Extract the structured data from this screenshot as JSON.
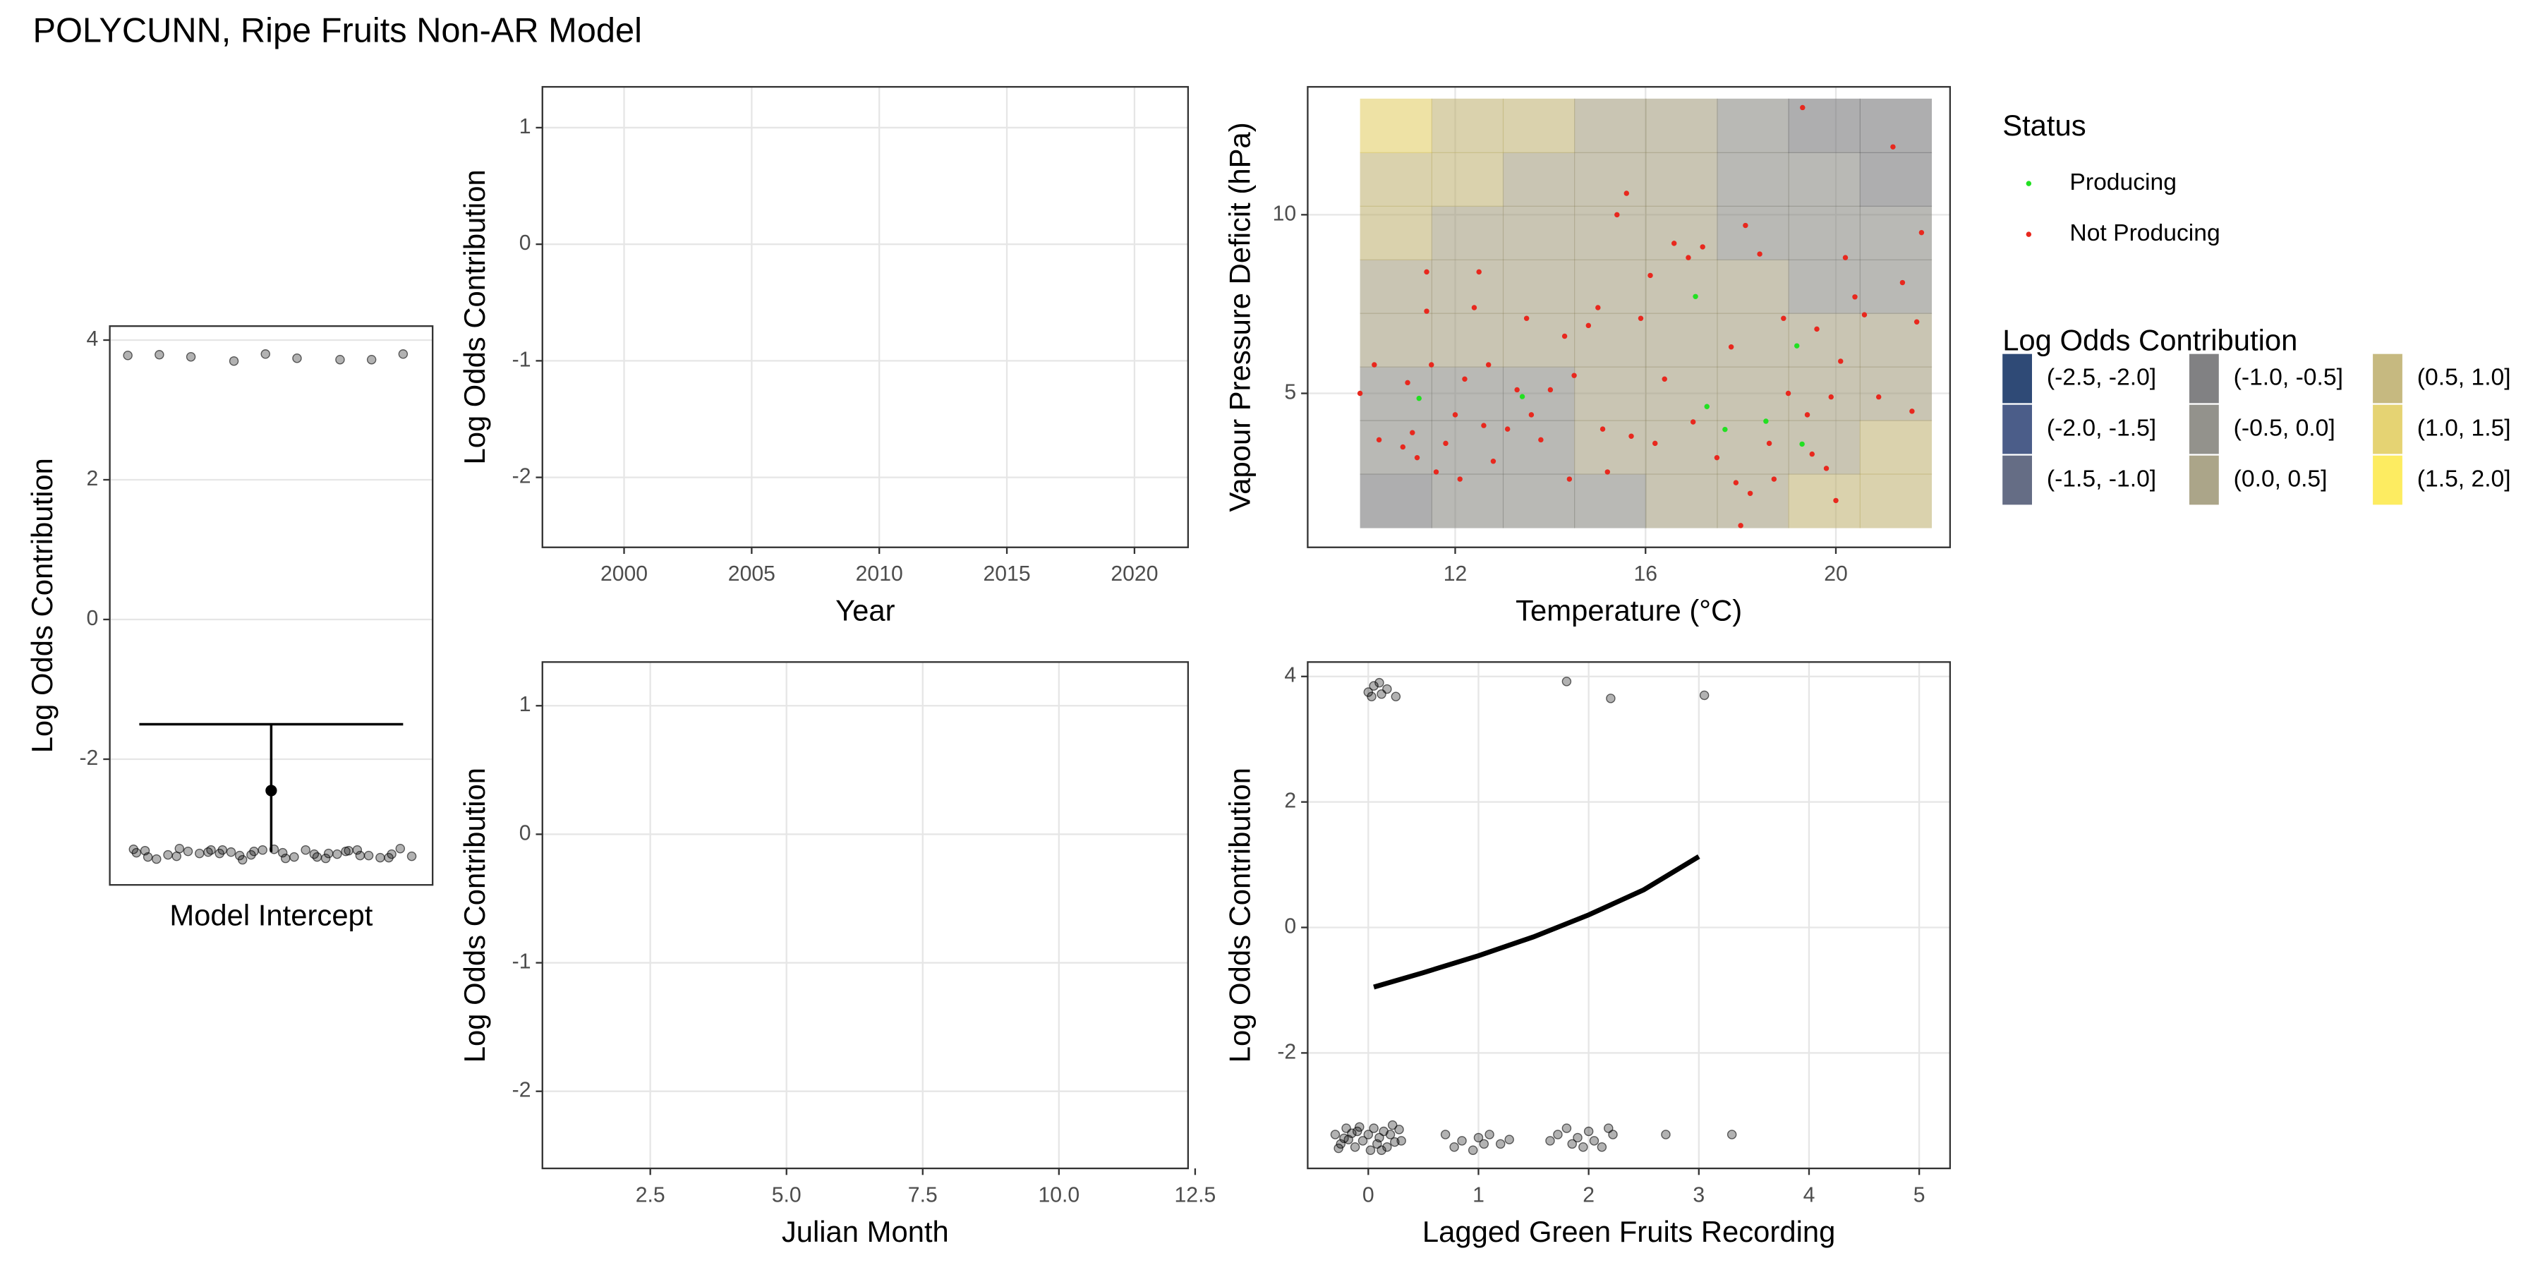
{
  "title": "POLYCUNN, Ripe Fruits Non-AR Model",
  "chart_data": [
    {
      "type": "errorbar",
      "x_label": "Model Intercept",
      "y_label": "Log Odds Contribution",
      "ylim": [
        -3.8,
        4.2
      ],
      "yticks": [
        -2,
        0,
        2,
        4
      ],
      "estimate": -2.45,
      "upper": -1.5,
      "lower": -3.33,
      "points": [
        3.78,
        3.7,
        3.72,
        3.79,
        3.8,
        3.72,
        3.76,
        3.74,
        3.8,
        -3.3,
        -3.35,
        -3.4,
        -3.32,
        -3.38,
        -3.28,
        -3.42,
        -3.36,
        -3.3,
        -3.4,
        -3.34,
        -3.44,
        -3.31,
        -3.37,
        -3.29,
        -3.41,
        -3.35,
        -3.3,
        -3.39,
        -3.33,
        -3.36,
        -3.43,
        -3.3,
        -3.38,
        -3.32,
        -3.4,
        -3.28,
        -3.35,
        -3.42,
        -3.31,
        -3.37,
        -3.3,
        -3.39,
        -3.34,
        -3.41,
        -3.33,
        -3.36,
        -3.29,
        -3.38,
        -3.32
      ]
    },
    {
      "type": "line",
      "x_label": "Year",
      "y_label": "Log Odds Contribution",
      "xlim": [
        1996.8,
        2022.1
      ],
      "xticks": [
        2000,
        2005,
        2010,
        2015,
        2020
      ],
      "ylim": [
        -2.6,
        1.35
      ],
      "yticks": [
        -2,
        -1,
        0,
        1
      ],
      "series": []
    },
    {
      "type": "line",
      "x_label": "Julian Month",
      "y_label": "Log Odds Contribution",
      "xlim": [
        0.52,
        12.37
      ],
      "xticks": [
        2.5,
        {
          "value": 5,
          "label": "5.0"
        },
        7.5,
        {
          "value": 10,
          "label": "10.0"
        },
        12.5
      ],
      "ylim": [
        -2.6,
        1.34
      ],
      "yticks": [
        -2,
        -1,
        0,
        1
      ],
      "series": []
    },
    {
      "type": "contour",
      "x_label": "Temperature (°C)",
      "y_label": "Vapour Pressure Deficit (hPa)",
      "xlim": [
        8.9,
        22.4
      ],
      "xticks": [
        12,
        16,
        20
      ],
      "ylim": [
        0.69,
        13.58
      ],
      "yticks": [
        5,
        10
      ],
      "legend_title": "Status",
      "series": [
        {
          "name": "Producing",
          "color": "#22e022",
          "x": [
            11.24,
            13.41,
            17.05,
            17.29,
            17.67,
            18.53,
            19.18,
            19.29
          ],
          "y": [
            4.86,
            4.91,
            7.71,
            4.63,
            3.99,
            4.22,
            6.33,
            3.58
          ]
        },
        {
          "name": "Not Producing",
          "color": "#e8281e",
          "x": [
            10.0,
            10.3,
            10.4,
            10.9,
            11.0,
            11.1,
            11.2,
            11.4,
            11.4,
            11.5,
            11.6,
            11.8,
            12.0,
            12.1,
            12.2,
            12.4,
            12.5,
            12.6,
            12.7,
            12.8,
            13.1,
            13.3,
            13.5,
            13.6,
            13.8,
            14.0,
            14.3,
            14.4,
            14.5,
            14.8,
            15.0,
            15.1,
            15.2,
            15.4,
            15.6,
            15.7,
            15.9,
            16.1,
            16.2,
            16.4,
            16.6,
            16.9,
            17.0,
            17.2,
            17.5,
            17.8,
            17.9,
            18.0,
            18.1,
            18.2,
            18.4,
            18.6,
            18.7,
            18.9,
            19.0,
            19.3,
            19.4,
            19.5,
            19.6,
            19.8,
            19.9,
            20.0,
            20.1,
            20.2,
            20.4,
            20.6,
            20.9,
            21.2,
            21.4,
            21.6,
            21.8,
            21.7
          ],
          "y": [
            5.0,
            5.8,
            3.7,
            3.5,
            5.3,
            3.9,
            3.2,
            7.3,
            8.4,
            5.8,
            2.8,
            3.6,
            4.4,
            2.6,
            5.4,
            7.4,
            8.4,
            4.1,
            5.8,
            3.1,
            4.0,
            5.1,
            7.1,
            4.4,
            3.7,
            5.1,
            6.6,
            2.6,
            5.5,
            6.9,
            7.4,
            4.0,
            2.8,
            10.0,
            10.6,
            3.8,
            7.1,
            8.3,
            3.6,
            5.4,
            9.2,
            8.8,
            4.2,
            9.1,
            3.2,
            6.3,
            2.5,
            1.3,
            9.7,
            2.2,
            8.9,
            3.6,
            2.6,
            7.1,
            5.0,
            13.0,
            4.4,
            3.3,
            6.8,
            2.9,
            4.9,
            2.0,
            5.9,
            8.8,
            7.7,
            7.2,
            4.9,
            11.9,
            8.1,
            4.5,
            9.5,
            7.0
          ]
        }
      ],
      "contour": {
        "title": "Log Odds Contribution",
        "x": [
          10.75,
          12.25,
          13.75,
          15.25,
          16.75,
          18.25,
          19.75,
          21.25
        ],
        "y": [
          2,
          3.5,
          5,
          6.5,
          8,
          9.5,
          11,
          12.5
        ],
        "z": [
          [
            -0.68,
            -0.47,
            -0.25,
            -0.04,
            0.18,
            0.4,
            0.61,
            0.83
          ],
          [
            -0.44,
            -0.29,
            -0.14,
            0.01,
            0.15,
            0.3,
            0.45,
            0.6
          ],
          [
            -0.19,
            -0.11,
            -0.03,
            0.05,
            0.13,
            0.21,
            0.29,
            0.37
          ],
          [
            0.05,
            0.06,
            0.08,
            0.09,
            0.1,
            0.12,
            0.13,
            0.15
          ],
          [
            0.3,
            0.24,
            0.19,
            0.13,
            0.08,
            0.03,
            -0.03,
            -0.08
          ],
          [
            0.54,
            0.42,
            0.3,
            0.18,
            0.06,
            -0.07,
            -0.19,
            -0.31
          ],
          [
            0.79,
            0.6,
            0.41,
            0.22,
            0.03,
            -0.16,
            -0.35,
            -0.54
          ],
          [
            1.03,
            0.78,
            0.52,
            0.26,
            0.01,
            -0.25,
            -0.51,
            -0.76
          ]
        ],
        "breaks": [
          -2.5,
          -2.0,
          -1.5,
          -1.0,
          -0.5,
          0.0,
          0.5,
          1.0,
          1.5,
          2.0
        ],
        "levels": [
          {
            "label": "(-2.5, -2.0]",
            "color": "#0a2a5e"
          },
          {
            "label": "(-2.0, -1.5]",
            "color": "#2b4174"
          },
          {
            "label": "(-1.5, -1.0]",
            "color": "#4a5470"
          },
          {
            "label": "(-1.0, -0.5]",
            "color": "#6b6b6d"
          },
          {
            "label": "(-0.5, 0.0]",
            "color": "#807f78"
          },
          {
            "label": "(0.0, 0.5]",
            "color": "#9c9574"
          },
          {
            "label": "(0.5, 1.0]",
            "color": "#bcad6a"
          },
          {
            "label": "(1.0, 1.5]",
            "color": "#e0cb5b"
          },
          {
            "label": "(1.5, 2.0]",
            "color": "#fde945"
          }
        ]
      }
    },
    {
      "type": "scatter",
      "x_label": "Lagged Green Fruits Recording",
      "y_label": "Log Odds Contribution",
      "xlim": [
        -0.55,
        5.28
      ],
      "xticks": [
        0,
        1,
        2,
        3,
        4,
        5
      ],
      "ylim": [
        -3.84,
        4.23
      ],
      "yticks": [
        -2,
        0,
        2,
        4
      ],
      "points": {
        "x": [
          0.0,
          0.05,
          0.1,
          0.12,
          0.03,
          0.17,
          0.25,
          1.8,
          2.2,
          3.05,
          -0.3,
          -0.25,
          -0.2,
          -0.18,
          -0.12,
          -0.1,
          -0.05,
          0,
          0.02,
          0.05,
          0.08,
          0.1,
          0.14,
          0.17,
          0.2,
          0.24,
          0.28,
          -0.27,
          -0.08,
          0.12,
          0.22,
          -0.15,
          0.3,
          -0.22,
          0.7,
          0.78,
          0.85,
          0.95,
          1.0,
          1.05,
          1.1,
          1.2,
          1.28,
          1.65,
          1.72,
          1.8,
          1.85,
          1.9,
          1.95,
          2.0,
          2.05,
          2.12,
          2.18,
          2.22,
          2.7,
          3.3
        ],
        "y": [
          3.75,
          3.85,
          3.9,
          3.72,
          3.68,
          3.8,
          3.68,
          3.92,
          3.65,
          3.7,
          -3.3,
          -3.45,
          -3.2,
          -3.38,
          -3.5,
          -3.25,
          -3.4,
          -3.3,
          -3.55,
          -3.2,
          -3.45,
          -3.35,
          -3.25,
          -3.5,
          -3.3,
          -3.42,
          -3.22,
          -3.52,
          -3.18,
          -3.55,
          -3.15,
          -3.28,
          -3.4,
          -3.36,
          -3.3,
          -3.5,
          -3.4,
          -3.55,
          -3.35,
          -3.45,
          -3.3,
          -3.45,
          -3.38,
          -3.4,
          -3.3,
          -3.2,
          -3.45,
          -3.35,
          -3.5,
          -3.25,
          -3.4,
          -3.5,
          -3.2,
          -3.3,
          -3.3,
          -3.3
        ]
      },
      "line": {
        "x": [
          0.05,
          0.5,
          1,
          1.5,
          2,
          2.5,
          3
        ],
        "y": [
          -0.95,
          -0.72,
          -0.45,
          -0.15,
          0.2,
          0.6,
          1.13
        ]
      }
    }
  ]
}
